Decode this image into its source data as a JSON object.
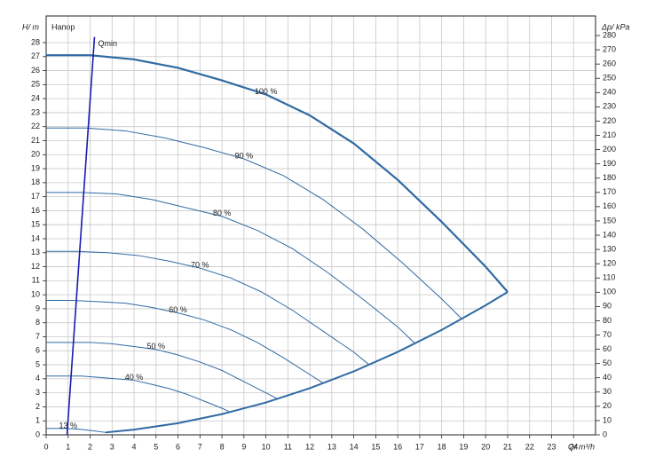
{
  "chart_data": {
    "type": "line",
    "y_title": "Напор",
    "xlabel": "Q/ m³/h",
    "ylabel": "H/ m",
    "y2label": "Δp/ kPa",
    "xlim": [
      0,
      25
    ],
    "ylim": [
      0,
      29.9
    ],
    "y2lim": [
      0,
      293.7
    ],
    "xticks": [
      0,
      1,
      2,
      3,
      4,
      5,
      6,
      7,
      8,
      9,
      10,
      11,
      12,
      13,
      14,
      15,
      16,
      17,
      18,
      19,
      20,
      21,
      22,
      23,
      24
    ],
    "yticks": [
      0,
      1,
      2,
      3,
      4,
      5,
      6,
      7,
      8,
      9,
      10,
      11,
      12,
      13,
      14,
      15,
      16,
      17,
      18,
      19,
      20,
      21,
      22,
      23,
      24,
      25,
      26,
      27,
      28
    ],
    "y2ticks": [
      0,
      10,
      20,
      30,
      40,
      50,
      60,
      70,
      80,
      90,
      100,
      110,
      120,
      130,
      140,
      150,
      160,
      170,
      180,
      190,
      200,
      210,
      220,
      230,
      240,
      250,
      260,
      270,
      280
    ],
    "grid": true,
    "series": [
      {
        "label": "100 %",
        "color": "#2f6aa3",
        "width": 2.2,
        "x": [
          0,
          2,
          4,
          6,
          8,
          10,
          12,
          14,
          16,
          18,
          20,
          21
        ],
        "values": [
          27.1,
          27.1,
          26.8,
          26.2,
          25.3,
          24.3,
          22.8,
          20.8,
          18.2,
          15.2,
          12.0,
          10.2
        ]
      },
      {
        "label": "90 %",
        "color": "#2f6aa3",
        "width": 1,
        "x": [
          0,
          1.8,
          3.6,
          5.4,
          7.2,
          9,
          10.8,
          12.6,
          14.4,
          16.2,
          18,
          18.9
        ],
        "values": [
          21.9,
          21.9,
          21.7,
          21.2,
          20.5,
          19.7,
          18.5,
          16.8,
          14.7,
          12.3,
          9.7,
          8.3
        ]
      },
      {
        "label": "80 %",
        "color": "#2f6aa3",
        "width": 1,
        "x": [
          0,
          1.6,
          3.2,
          4.8,
          6.4,
          8,
          9.6,
          11.2,
          12.8,
          14.4,
          16,
          16.8
        ],
        "values": [
          17.3,
          17.3,
          17.2,
          16.8,
          16.2,
          15.6,
          14.6,
          13.3,
          11.6,
          9.7,
          7.7,
          6.5
        ]
      },
      {
        "label": "70 %",
        "color": "#2f6aa3",
        "width": 1,
        "x": [
          0,
          1.4,
          2.8,
          4.2,
          5.6,
          7,
          8.4,
          9.8,
          11.2,
          12.6,
          14,
          14.7
        ],
        "values": [
          13.1,
          13.1,
          13.0,
          12.8,
          12.4,
          11.9,
          11.2,
          10.2,
          8.9,
          7.4,
          5.9,
          5.0
        ]
      },
      {
        "label": "60 %",
        "color": "#2f6aa3",
        "width": 1,
        "x": [
          0,
          1.2,
          2.4,
          3.6,
          4.8,
          6,
          7.2,
          8.4,
          9.6,
          10.8,
          12,
          12.6
        ],
        "values": [
          9.6,
          9.6,
          9.5,
          9.4,
          9.1,
          8.7,
          8.2,
          7.5,
          6.6,
          5.5,
          4.3,
          3.7
        ]
      },
      {
        "label": "50 %",
        "color": "#2f6aa3",
        "width": 1,
        "x": [
          0,
          1,
          2,
          3,
          4,
          5,
          6,
          7,
          8,
          9,
          10,
          10.5
        ],
        "values": [
          6.6,
          6.6,
          6.6,
          6.5,
          6.3,
          6.1,
          5.7,
          5.2,
          4.6,
          3.8,
          3.0,
          2.6
        ]
      },
      {
        "label": "40 %",
        "color": "#2f6aa3",
        "width": 1,
        "x": [
          0,
          0.8,
          1.6,
          2.4,
          3.2,
          4,
          4.8,
          5.6,
          6.4,
          7.2,
          8,
          8.4
        ],
        "values": [
          4.2,
          4.2,
          4.2,
          4.1,
          4.0,
          3.9,
          3.6,
          3.3,
          2.9,
          2.4,
          1.9,
          1.6
        ]
      },
      {
        "label": "13 %",
        "color": "#2f6aa3",
        "width": 1,
        "x": [
          0,
          1,
          1.5,
          2.2,
          2.7
        ],
        "values": [
          0.46,
          0.45,
          0.4,
          0.28,
          0.17
        ]
      }
    ],
    "limit_curve": {
      "color": "#2f6aa3",
      "x": [
        2.7,
        4,
        6,
        8,
        10,
        12,
        14,
        16,
        18,
        20,
        21
      ],
      "values": [
        0.17,
        0.37,
        0.83,
        1.48,
        2.31,
        3.33,
        4.53,
        5.92,
        7.49,
        9.25,
        10.2
      ]
    },
    "qmin": {
      "label": "Qmin",
      "color": "#1a1ab0",
      "x": [
        0.95,
        2.2
      ],
      "values": [
        0,
        28.4
      ]
    }
  }
}
